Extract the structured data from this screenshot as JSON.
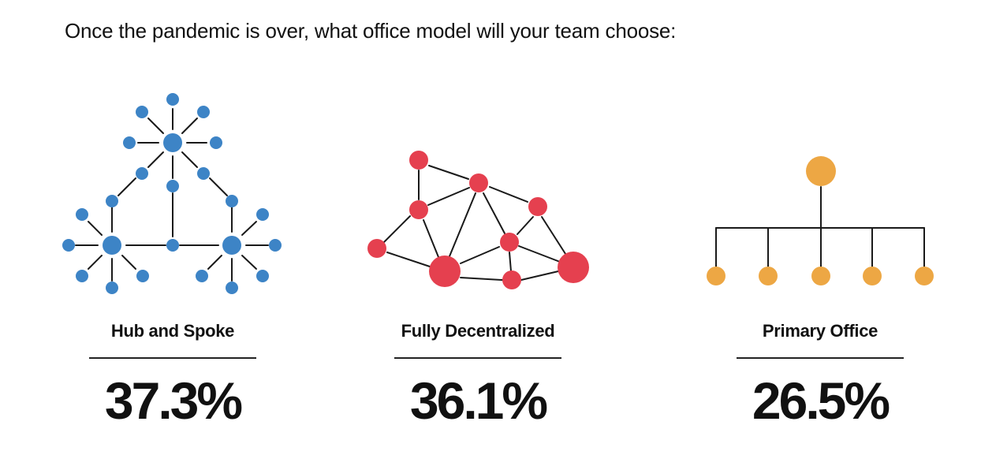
{
  "question": "Once the pandemic is over, what office model will your team choose:",
  "colors": {
    "hub": "#3d84c6",
    "decentralized": "#e5404f",
    "primary": "#eda744",
    "line": "#1a1a1a"
  },
  "options": [
    {
      "label": "Hub and Spoke",
      "value": "37.3%",
      "icon": "hub-and-spoke-network-icon"
    },
    {
      "label": "Fully Decentralized",
      "value": "36.1%",
      "icon": "decentralized-mesh-network-icon"
    },
    {
      "label": "Primary Office",
      "value": "26.5%",
      "icon": "primary-office-hierarchy-icon"
    }
  ]
}
